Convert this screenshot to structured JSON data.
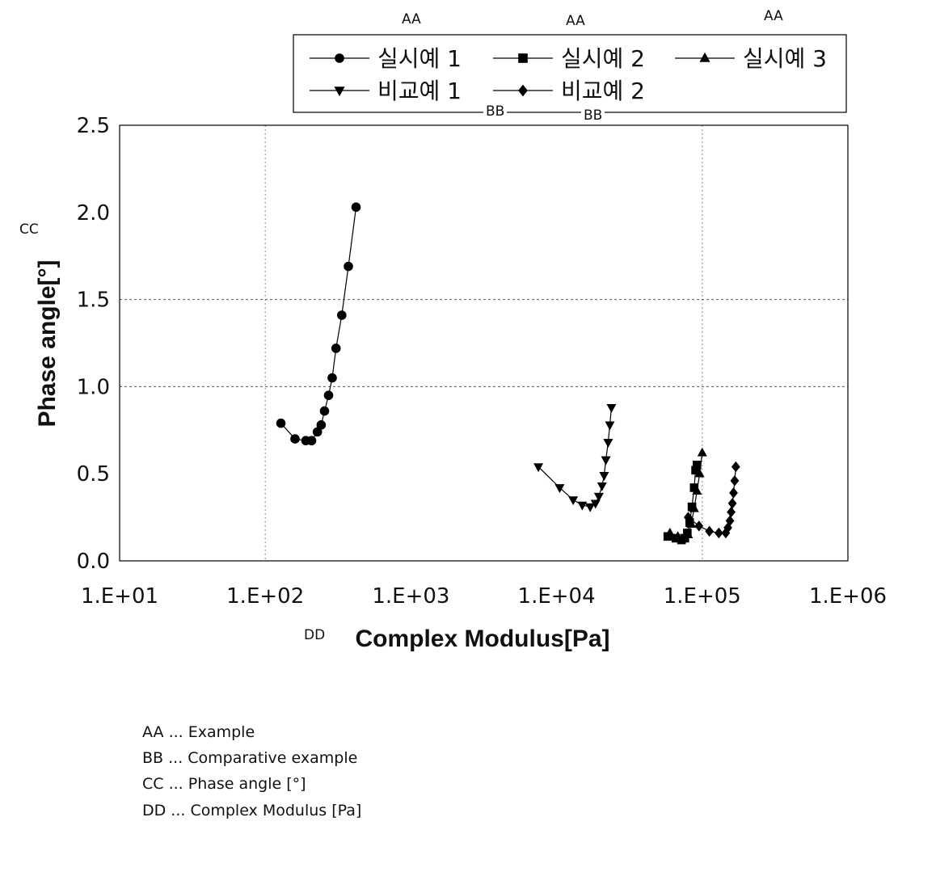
{
  "annotations": {
    "example_tags": [
      "AA",
      "AA",
      "AA"
    ],
    "comparative_tags": [
      "BB",
      "BB"
    ],
    "ylabel_tag": "CC",
    "xlabel_tag": "DD"
  },
  "key": [
    "AA ... Example",
    "BB ... Comparative example",
    "CC ... Phase angle [°]",
    "DD ... Complex Modulus [Pa]"
  ],
  "chart_data": {
    "type": "scatter",
    "title": "",
    "xlabel": "Complex Modulus[Pa]",
    "ylabel": "Phase angle[°]",
    "xscale": "log",
    "xlim": [
      10,
      1000000
    ],
    "ylim": [
      0,
      2.5
    ],
    "xticks": [
      10,
      100,
      1000,
      10000,
      100000,
      1000000
    ],
    "xtick_labels": [
      "1.E+01",
      "1.E+02",
      "1.E+03",
      "1.E+04",
      "1.E+05",
      "1.E+06"
    ],
    "yticks": [
      0,
      0.5,
      1.0,
      1.5,
      2.0,
      2.5
    ],
    "ytick_labels": [
      "0.0",
      "0.5",
      "1.0",
      "1.5",
      "2.0",
      "2.5"
    ],
    "grid": "dotted, at 1.E+02, 1.E+05, 1.0 and 1.5",
    "legend_position": "top",
    "series": [
      {
        "name": "실시예 1",
        "marker": "circle",
        "color": "#000000",
        "x": [
          128,
          160,
          190,
          208,
          228,
          242,
          255,
          272,
          288,
          306,
          335,
          372,
          420
        ],
        "y": [
          0.79,
          0.7,
          0.69,
          0.69,
          0.74,
          0.78,
          0.86,
          0.95,
          1.05,
          1.22,
          1.41,
          1.69,
          2.03
        ]
      },
      {
        "name": "실시예 2",
        "marker": "square",
        "color": "#000000",
        "x": [
          58000,
          66000,
          72000,
          76000,
          79000,
          82000,
          85000,
          88000,
          90000,
          92000
        ],
        "y": [
          0.14,
          0.13,
          0.12,
          0.13,
          0.16,
          0.22,
          0.31,
          0.42,
          0.52,
          0.55
        ]
      },
      {
        "name": "실시예 3",
        "marker": "triangle-up",
        "color": "#000000",
        "x": [
          60000,
          68000,
          75000,
          80000,
          84000,
          88000,
          92000,
          96000,
          100000
        ],
        "y": [
          0.16,
          0.14,
          0.13,
          0.15,
          0.21,
          0.3,
          0.4,
          0.5,
          0.62
        ]
      },
      {
        "name": "비교예 1",
        "marker": "triangle-down",
        "color": "#000000",
        "x": [
          7500,
          10500,
          13000,
          15000,
          17000,
          18500,
          19500,
          20500,
          21200,
          21800,
          22600,
          23200,
          23800
        ],
        "y": [
          0.54,
          0.42,
          0.35,
          0.32,
          0.31,
          0.33,
          0.37,
          0.43,
          0.49,
          0.58,
          0.68,
          0.78,
          0.88
        ]
      },
      {
        "name": "비교예 2",
        "marker": "diamond",
        "color": "#000000",
        "x": [
          80000,
          95000,
          112000,
          130000,
          145000,
          150000,
          155000,
          158000,
          161000,
          164000,
          167000,
          170000
        ],
        "y": [
          0.25,
          0.2,
          0.17,
          0.16,
          0.16,
          0.19,
          0.23,
          0.28,
          0.33,
          0.39,
          0.46,
          0.54
        ]
      }
    ]
  }
}
